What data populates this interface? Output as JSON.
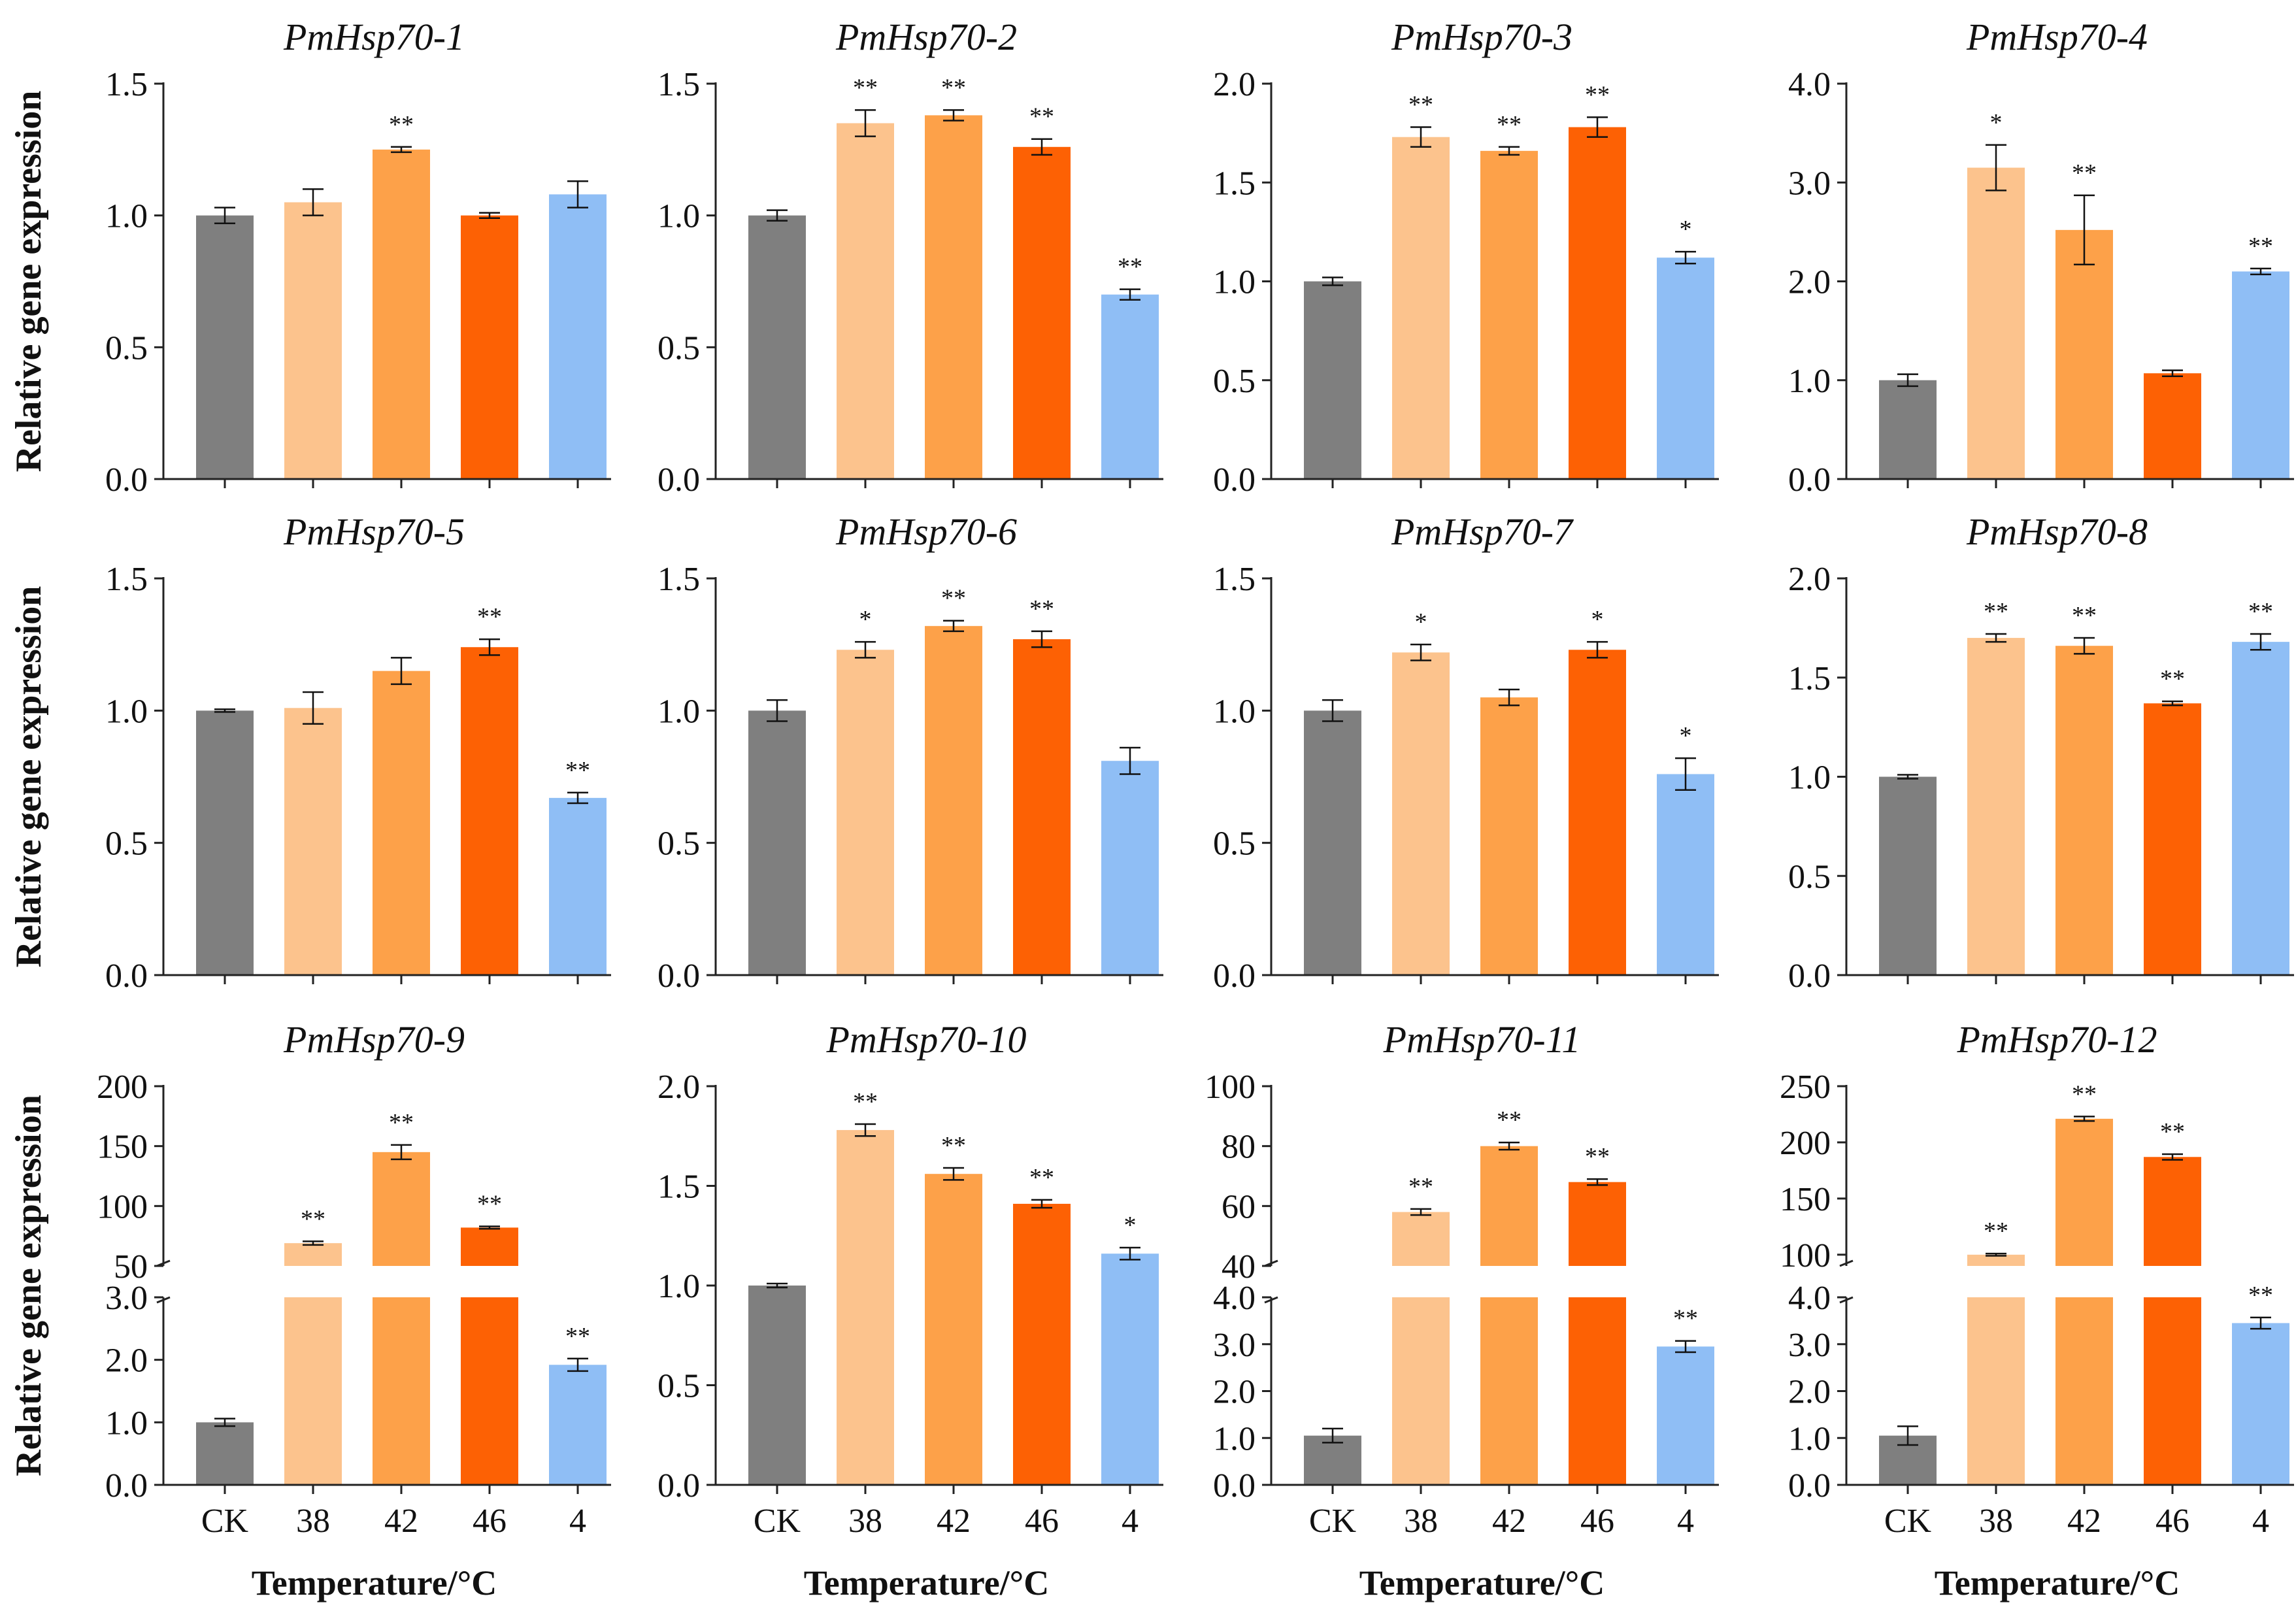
{
  "categories": [
    "CK",
    "38",
    "42",
    "46",
    "4"
  ],
  "x_axis_label": "Temperature/°C",
  "y_axis_label": "Relative gene expression",
  "colors": {
    "CK": "#7f7f7f",
    "38": "#fcc38d",
    "42": "#fda149",
    "46": "#fd6104",
    "4": "#8fbef5"
  },
  "chart_data": [
    {
      "type": "bar",
      "title": "PmHsp70-1",
      "ylim": [
        0,
        1.5
      ],
      "ticks": [
        "0.0",
        "0.5",
        "1.0",
        "1.5"
      ],
      "values": [
        1.0,
        1.05,
        1.25,
        1.0,
        1.08
      ],
      "errors": [
        0.03,
        0.05,
        0.01,
        0.01,
        0.05
      ],
      "significance": [
        "",
        "",
        "**",
        "",
        ""
      ]
    },
    {
      "type": "bar",
      "title": "PmHsp70-2",
      "ylim": [
        0,
        1.5
      ],
      "ticks": [
        "0.0",
        "0.5",
        "1.0",
        "1.5"
      ],
      "values": [
        1.0,
        1.35,
        1.38,
        1.26,
        0.7
      ],
      "errors": [
        0.02,
        0.05,
        0.02,
        0.03,
        0.02
      ],
      "significance": [
        "",
        "**",
        "**",
        "**",
        "**"
      ]
    },
    {
      "type": "bar",
      "title": "PmHsp70-3",
      "ylim": [
        0,
        2.0
      ],
      "ticks": [
        "0.0",
        "0.5",
        "1.0",
        "1.5",
        "2.0"
      ],
      "values": [
        1.0,
        1.73,
        1.66,
        1.78,
        1.12
      ],
      "errors": [
        0.02,
        0.05,
        0.02,
        0.05,
        0.03
      ],
      "significance": [
        "",
        "**",
        "**",
        "**",
        "*"
      ]
    },
    {
      "type": "bar",
      "title": "PmHsp70-4",
      "ylim": [
        0,
        4.0
      ],
      "ticks": [
        "0.0",
        "1.0",
        "2.0",
        "3.0",
        "4.0"
      ],
      "values": [
        1.0,
        3.15,
        2.52,
        1.07,
        2.1
      ],
      "errors": [
        0.06,
        0.23,
        0.35,
        0.03,
        0.03
      ],
      "significance": [
        "",
        "*",
        "**",
        "",
        "**"
      ]
    },
    {
      "type": "bar",
      "title": "PmHsp70-5",
      "ylim": [
        0,
        1.5
      ],
      "ticks": [
        "0.0",
        "0.5",
        "1.0",
        "1.5"
      ],
      "values": [
        1.0,
        1.01,
        1.15,
        1.24,
        0.67
      ],
      "errors": [
        0.005,
        0.06,
        0.05,
        0.03,
        0.02
      ],
      "significance": [
        "",
        "",
        "",
        "**",
        "**"
      ]
    },
    {
      "type": "bar",
      "title": "PmHsp70-6",
      "ylim": [
        0,
        1.5
      ],
      "ticks": [
        "0.0",
        "0.5",
        "1.0",
        "1.5"
      ],
      "values": [
        1.0,
        1.23,
        1.32,
        1.27,
        0.81
      ],
      "errors": [
        0.04,
        0.03,
        0.02,
        0.03,
        0.05
      ],
      "significance": [
        "",
        "*",
        "**",
        "**",
        ""
      ]
    },
    {
      "type": "bar",
      "title": "PmHsp70-7",
      "ylim": [
        0,
        1.5
      ],
      "ticks": [
        "0.0",
        "0.5",
        "1.0",
        "1.5"
      ],
      "values": [
        1.0,
        1.22,
        1.05,
        1.23,
        0.76
      ],
      "errors": [
        0.04,
        0.03,
        0.03,
        0.03,
        0.06
      ],
      "significance": [
        "",
        "*",
        "",
        "*",
        "*"
      ]
    },
    {
      "type": "bar",
      "title": "PmHsp70-8",
      "ylim": [
        0,
        2.0
      ],
      "ticks": [
        "0.0",
        "0.5",
        "1.0",
        "1.5",
        "2.0"
      ],
      "values": [
        1.0,
        1.7,
        1.66,
        1.37,
        1.68
      ],
      "errors": [
        0.01,
        0.02,
        0.04,
        0.01,
        0.04
      ],
      "significance": [
        "",
        "**",
        "**",
        "**",
        "**"
      ]
    },
    {
      "type": "bar",
      "title": "PmHsp70-9",
      "broken_axis": true,
      "lower_ylim": [
        0,
        3.0
      ],
      "lower_ticks": [
        "0.0",
        "1.0",
        "2.0",
        "3.0"
      ],
      "upper_ylim": [
        50,
        200
      ],
      "upper_ticks": [
        "50",
        "100",
        "150",
        "200"
      ],
      "values": [
        1.0,
        69,
        145,
        82,
        1.92
      ],
      "errors": [
        0.06,
        1.5,
        6,
        1,
        0.1
      ],
      "significance": [
        "",
        "**",
        "**",
        "**",
        "**"
      ]
    },
    {
      "type": "bar",
      "title": "PmHsp70-10",
      "ylim": [
        0,
        2.0
      ],
      "ticks": [
        "0.0",
        "0.5",
        "1.0",
        "1.5",
        "2.0"
      ],
      "values": [
        1.0,
        1.78,
        1.56,
        1.41,
        1.16
      ],
      "errors": [
        0.01,
        0.03,
        0.03,
        0.02,
        0.03
      ],
      "significance": [
        "",
        "**",
        "**",
        "**",
        "*"
      ]
    },
    {
      "type": "bar",
      "title": "PmHsp70-11",
      "broken_axis": true,
      "lower_ylim": [
        0,
        4.0
      ],
      "lower_ticks": [
        "0.0",
        "1.0",
        "2.0",
        "3.0",
        "4.0"
      ],
      "upper_ylim": [
        40,
        100
      ],
      "upper_ticks": [
        "40",
        "60",
        "80",
        "100"
      ],
      "values": [
        1.05,
        58,
        80,
        68,
        2.95
      ],
      "errors": [
        0.15,
        1,
        1.2,
        1,
        0.12
      ],
      "significance": [
        "",
        "**",
        "**",
        "**",
        "**"
      ]
    },
    {
      "type": "bar",
      "title": "PmHsp70-12",
      "broken_axis": true,
      "lower_ylim": [
        0,
        4.0
      ],
      "lower_ticks": [
        "0.0",
        "1.0",
        "2.0",
        "3.0",
        "4.0"
      ],
      "upper_ylim": [
        90,
        250
      ],
      "upper_ticks": [
        "100",
        "150",
        "200",
        "250"
      ],
      "values": [
        1.05,
        100,
        221,
        187,
        3.45
      ],
      "errors": [
        0.2,
        1,
        2,
        2.5,
        0.12
      ],
      "significance": [
        "",
        "**",
        "**",
        "**",
        "**"
      ]
    }
  ]
}
